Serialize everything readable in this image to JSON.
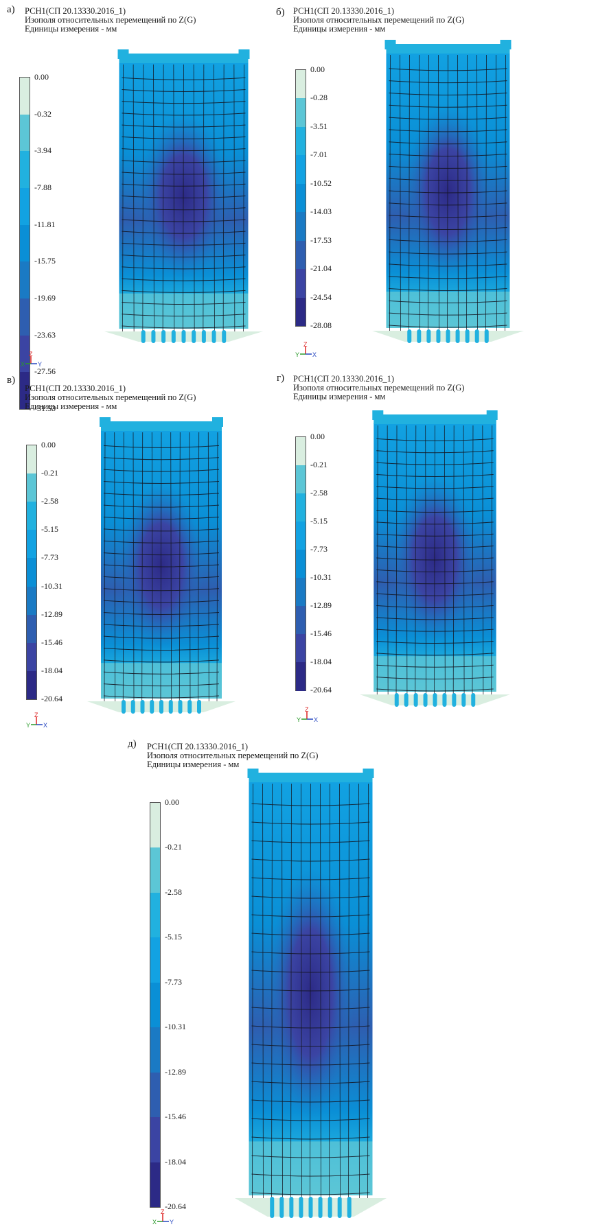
{
  "colors": [
    "#d9eee0",
    "#5cc6d6",
    "#21b1df",
    "#12a2e2",
    "#0a8fd6",
    "#1a7ac4",
    "#2e5eb0",
    "#3b44a3",
    "#2c2a86"
  ],
  "panels": [
    {
      "label": "а)",
      "header": [
        "РСН1(СП 20.13330.2016_1)",
        "Изополя относительных перемещений по Z(G)",
        "Единицы измерения - мм"
      ],
      "ticks": [
        "0.00",
        "-0.32",
        "-3.94",
        "-7.88",
        "-11.81",
        "-15.75",
        "-19.69",
        "-23.63",
        "-27.56",
        "-31.53"
      ],
      "axes": {
        "up": "Z",
        "left": "X",
        "right": "Y"
      }
    },
    {
      "label": "б)",
      "header": [
        "РСН1(СП 20.13330.2016_1)",
        "Изополя относительных перемещений по Z(G)",
        "Единицы измерения - мм"
      ],
      "ticks": [
        "0.00",
        "-0.28",
        "-3.51",
        "-7.01",
        "-10.52",
        "-14.03",
        "-17.53",
        "-21.04",
        "-24.54",
        "-28.08"
      ],
      "axes": {
        "up": "Z",
        "left": "Y",
        "right": "X"
      }
    },
    {
      "label": "в)",
      "header": [
        "РСН1(СП 20.13330.2016_1)",
        "Изополя относительных перемещений по Z(G)",
        "Единицы измерения - мм"
      ],
      "ticks": [
        "0.00",
        "-0.21",
        "-2.58",
        "-5.15",
        "-7.73",
        "-10.31",
        "-12.89",
        "-15.46",
        "-18.04",
        "-20.64"
      ],
      "axes": {
        "up": "Z",
        "left": "Y",
        "right": "X"
      }
    },
    {
      "label": "г)",
      "header": [
        "РСН1(СП 20.13330.2016_1)",
        "Изополя относительных перемещений по Z(G)",
        "Единицы измерения - мм"
      ],
      "ticks": [
        "0.00",
        "-0.21",
        "-2.58",
        "-5.15",
        "-7.73",
        "-10.31",
        "-12.89",
        "-15.46",
        "-18.04",
        "-20.64"
      ],
      "axes": {
        "up": "Z",
        "left": "Y",
        "right": "X"
      }
    },
    {
      "label": "д)",
      "header": [
        "РСН1(СП 20.13330.2016_1)",
        "Изополя относительных перемещений по Z(G)",
        "Единицы измерения - мм"
      ],
      "ticks": [
        "0.00",
        "-0.21",
        "-2.58",
        "-5.15",
        "-7.73",
        "-10.31",
        "-12.89",
        "-15.46",
        "-18.04",
        "-20.64"
      ],
      "axes": {
        "up": "Z",
        "left": "X",
        "right": "Y"
      }
    }
  ]
}
